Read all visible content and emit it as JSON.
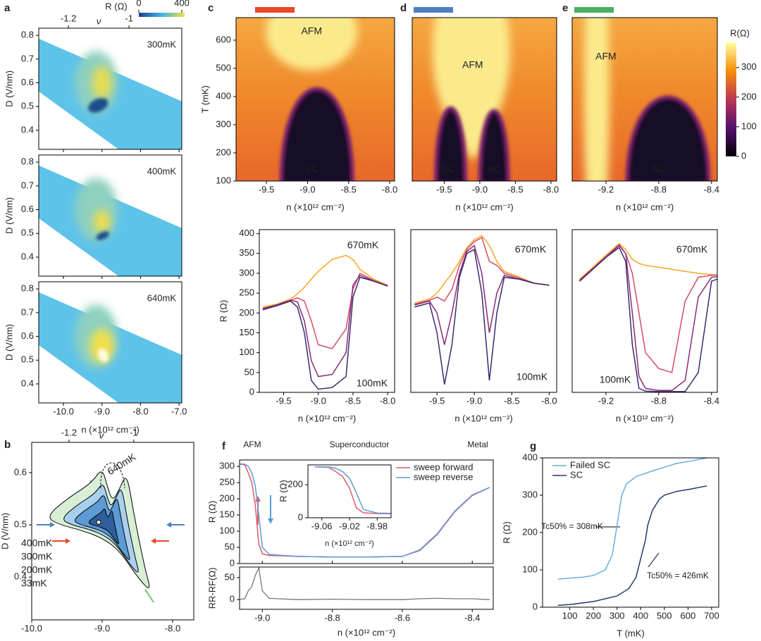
{
  "chart_data": [
    {
      "type": "heatmap",
      "label": "a",
      "x_label": "n (×10¹² cm⁻²)",
      "y_label": "D (V/nm)",
      "x2_label": "ν",
      "xlim": [
        -10.64,
        -6.93
      ],
      "xticks": [
        {
          "value": -10,
          "label": "-10.0"
        },
        {
          "value": -9,
          "label": "-9.0"
        },
        {
          "value": -8,
          "label": "-8.0"
        },
        {
          "value": -7,
          "label": "-7.0"
        }
      ],
      "x2lim": [
        -1.298,
        -0.826
      ],
      "x2ticks": [
        -1.2,
        -1
      ],
      "ylim": [
        0.32,
        0.83
      ],
      "yticks": [
        0.4,
        0.5,
        0.6,
        0.7,
        0.8
      ],
      "colorbar_label": "R (Ω)",
      "colorbar_lim": [
        0,
        400
      ],
      "colorbar_ticks": [
        0,
        400
      ],
      "panels": [
        {
          "annotation": "300mK"
        },
        {
          "annotation": "400mK"
        },
        {
          "annotation": "640mK"
        }
      ]
    },
    {
      "type": "contour",
      "label": "b",
      "x_label": "n (×10¹² cm⁻²)",
      "y_label": "D (V/nm)",
      "x2_label": "ν",
      "xlim": [
        -10,
        -7.7
      ],
      "xticks": [
        {
          "value": -10,
          "label": "-10.0"
        },
        {
          "value": -9,
          "label": "-9.0"
        },
        {
          "value": -8,
          "label": "-8.0"
        }
      ],
      "x2lim": [
        -1.315,
        -0.815
      ],
      "x2ticks": [
        -1.2,
        -1
      ],
      "ylim": [
        0.318,
        0.658
      ],
      "yticks": [
        0.4,
        0.5,
        0.6
      ],
      "annotation": "640mK",
      "series": [
        {
          "name": "400mK",
          "color": "#1e3a66",
          "fill": "#2e5f99"
        },
        {
          "name": "300mK",
          "color": "#2f6fb0",
          "fill": "#5c9bd4"
        },
        {
          "name": "200mK",
          "color": "#3f95d8",
          "fill": "#a9cfee"
        },
        {
          "name": "33mK",
          "color": "#6cc070",
          "fill": "#d8efd6"
        }
      ]
    },
    {
      "type": "heatmap",
      "label": "c",
      "bar_color": "#e8472b",
      "x_label": "n (×10¹² cm⁻²)",
      "y_label": "T (mK)",
      "xlim": [
        -9.87,
        -7.94
      ],
      "xticks": [
        -9.5,
        {
          "value": -9,
          "label": "-9.0"
        },
        -8.5,
        {
          "value": -8,
          "label": "-8.0"
        }
      ],
      "ylim": [
        100,
        680
      ],
      "yticks": [
        100,
        200,
        300,
        400,
        500,
        600
      ],
      "annotations": [
        "AFM",
        "SC"
      ]
    },
    {
      "type": "heatmap",
      "label": "d",
      "bar_color": "#4f7fc0",
      "x_label": "n (×10¹² cm⁻²)",
      "xlim": [
        -9.95,
        -7.92
      ],
      "xticks": [
        -9.5,
        {
          "value": -9,
          "label": "-9.0"
        },
        -8.5,
        {
          "value": -8,
          "label": "-8.0"
        }
      ],
      "ylim": [
        100,
        680
      ],
      "annotations": [
        "AFM",
        "SC",
        "SC"
      ]
    },
    {
      "type": "heatmap",
      "label": "e",
      "bar_color": "#4caf60",
      "x_label": "n (×10¹² cm⁻²)",
      "xlim": [
        -9.456,
        -8.356
      ],
      "xticks": [
        -9.2,
        -8.8,
        -8.4
      ],
      "ylim": [
        100,
        680
      ],
      "annotations": [
        "AFM",
        "SC"
      ],
      "colorbar_label": "R(Ω)",
      "colorbar_lim": [
        0,
        385
      ],
      "colorbar_ticks": [
        0,
        100,
        200,
        300
      ]
    },
    {
      "type": "line",
      "x_label": "n (×10¹² cm⁻²)",
      "y_label": "R (Ω)",
      "xlim": [
        -9.85,
        -7.9
      ],
      "xticks": [
        -9.5,
        {
          "value": -9,
          "label": "-9.0"
        },
        -8.5,
        {
          "value": -8,
          "label": "-8.0"
        }
      ],
      "ylim": [
        0,
        410
      ],
      "yticks": [
        0,
        50,
        100,
        150,
        200,
        250,
        300,
        350,
        400
      ],
      "annotations": [
        "670mK",
        "100mK"
      ],
      "x": [
        -9.8,
        -9.6,
        -9.4,
        -9.3,
        -9.2,
        -9.1,
        -9.0,
        -8.8,
        -8.6,
        -8.5,
        -8.4,
        -8.2,
        -8.0
      ],
      "series": [
        {
          "color": "#f5a623",
          "values": [
            215,
            222,
            235,
            248,
            265,
            285,
            305,
            335,
            345,
            335,
            310,
            285,
            270
          ]
        },
        {
          "color": "#d64a66",
          "values": [
            212,
            220,
            232,
            238,
            230,
            180,
            120,
            110,
            160,
            260,
            300,
            282,
            268
          ]
        },
        {
          "color": "#8a2a7a",
          "values": [
            210,
            220,
            232,
            228,
            180,
            80,
            40,
            45,
            100,
            270,
            295,
            280,
            268
          ]
        },
        {
          "color": "#3b2a6e",
          "values": [
            208,
            218,
            230,
            215,
            150,
            30,
            8,
            12,
            40,
            240,
            290,
            280,
            268
          ]
        }
      ]
    },
    {
      "type": "line",
      "x_label": "n (×10¹² cm⁻²)",
      "xlim": [
        -9.85,
        -7.9
      ],
      "xticks": [
        -9.5,
        {
          "value": -9,
          "label": "-9.0"
        },
        -8.5,
        {
          "value": -8,
          "label": "-8.0"
        }
      ],
      "ylim": [
        0,
        410
      ],
      "annotations": [
        "670mK",
        "100mK"
      ],
      "x": [
        -9.8,
        -9.6,
        -9.5,
        -9.4,
        -9.3,
        -9.2,
        -9.1,
        -9.0,
        -8.9,
        -8.8,
        -8.7,
        -8.6,
        -8.4,
        -8.2,
        -8.0
      ],
      "series": [
        {
          "color": "#f5a623",
          "values": [
            225,
            235,
            250,
            275,
            300,
            330,
            365,
            385,
            395,
            370,
            330,
            305,
            290,
            275,
            270
          ]
        },
        {
          "color": "#d64a66",
          "values": [
            222,
            232,
            240,
            230,
            260,
            320,
            360,
            380,
            390,
            330,
            320,
            300,
            288,
            275,
            270
          ]
        },
        {
          "color": "#8a2a7a",
          "values": [
            220,
            230,
            200,
            120,
            200,
            300,
            355,
            370,
            300,
            150,
            250,
            295,
            285,
            275,
            270
          ]
        },
        {
          "color": "#3b2a6e",
          "values": [
            215,
            225,
            150,
            20,
            120,
            290,
            350,
            360,
            250,
            30,
            200,
            290,
            285,
            275,
            270
          ]
        }
      ]
    },
    {
      "type": "line",
      "x_label": "n (×10¹² cm⁻²)",
      "xlim": [
        -9.456,
        -8.356
      ],
      "xticks": [
        -9.2,
        -8.8,
        -8.4
      ],
      "ylim": [
        0,
        410
      ],
      "annotations": [
        "670mK",
        "100mK"
      ],
      "x": [
        -9.4,
        -9.3,
        -9.2,
        -9.1,
        -9.05,
        -9.0,
        -8.95,
        -8.9,
        -8.8,
        -8.7,
        -8.6,
        -8.5,
        -8.4,
        -8.3
      ],
      "series": [
        {
          "color": "#f5a623",
          "values": [
            285,
            315,
            345,
            375,
            360,
            335,
            325,
            320,
            315,
            310,
            305,
            300,
            297,
            295
          ]
        },
        {
          "color": "#d64a66",
          "values": [
            283,
            312,
            342,
            372,
            350,
            300,
            200,
            100,
            60,
            50,
            230,
            290,
            295,
            295
          ]
        },
        {
          "color": "#8a2a7a",
          "values": [
            280,
            310,
            340,
            370,
            350,
            200,
            40,
            10,
            5,
            5,
            30,
            240,
            290,
            293
          ]
        },
        {
          "color": "#3b2a6e",
          "values": [
            280,
            310,
            340,
            365,
            330,
            120,
            10,
            3,
            2,
            2,
            2,
            50,
            280,
            292
          ]
        }
      ]
    },
    {
      "type": "line",
      "label": "f",
      "x_label": "n (×10¹² cm⁻²)",
      "y_label": "R (Ω)",
      "xlim": [
        -9.065,
        -8.34
      ],
      "xticks": [
        {
          "value": -9,
          "label": "-9.0"
        },
        -8.8,
        -8.6,
        -8.4
      ],
      "ylim": [
        0,
        320
      ],
      "yticks": [
        0,
        50,
        100,
        150,
        200,
        250,
        300
      ],
      "annotations": [
        "AFM",
        "Superconductor",
        "Metal"
      ],
      "legend": "upper right",
      "x": [
        -9.07,
        -9.05,
        -9.04,
        -9.03,
        -9.02,
        -9.01,
        -9.0,
        -8.98,
        -8.9,
        -8.8,
        -8.7,
        -8.6,
        -8.55,
        -8.5,
        -8.45,
        -8.4,
        -8.35
      ],
      "series": [
        {
          "name": "sweep forward",
          "color": "#e05a6a",
          "values": [
            308,
            305,
            280,
            250,
            180,
            60,
            30,
            25,
            22,
            20,
            20,
            22,
            40,
            90,
            160,
            210,
            235
          ]
        },
        {
          "name": "sweep reverse",
          "color": "#5b9bd5",
          "values": [
            308,
            307,
            300,
            280,
            240,
            150,
            50,
            28,
            22,
            20,
            20,
            22,
            42,
            92,
            162,
            212,
            235
          ]
        }
      ],
      "inset": {
        "x_label": "n (×10¹² cm⁻²)",
        "y_label": "R (Ω)",
        "xlim": [
          -9.08,
          -8.96
        ],
        "xticks": [
          -9.06,
          -9.02,
          -8.98
        ],
        "ylim": [
          0,
          320
        ],
        "yticks": [
          0,
          200
        ]
      },
      "difference": {
        "y_label": "RR-RF(Ω)",
        "ylim": [
          -22,
          74
        ],
        "yticks": [
          0,
          50
        ],
        "color": "#777777",
        "values": [
          0,
          2,
          20,
          30,
          55,
          72,
          20,
          3,
          0,
          1,
          0,
          0,
          2,
          3,
          2,
          2,
          0
        ]
      }
    },
    {
      "type": "line",
      "label": "g",
      "x_label": "T (mK)",
      "y_label": "R (Ω)",
      "xlim": [
        -15,
        730
      ],
      "xticks": [
        100,
        200,
        300,
        400,
        500,
        600,
        700
      ],
      "ylim": [
        0,
        400
      ],
      "yticks": [
        0,
        100,
        200,
        300,
        400
      ],
      "legend": "upper left",
      "annotations": [
        "Tc50% = 308mK",
        "Tc50% = 426mK"
      ],
      "series": [
        {
          "name": "Failed SC",
          "color": "#6aaee0",
          "x": [
            50,
            100,
            150,
            200,
            250,
            280,
            300,
            320,
            340,
            380,
            450,
            500,
            550,
            600,
            680
          ],
          "values": [
            75,
            78,
            80,
            85,
            100,
            140,
            220,
            300,
            330,
            350,
            365,
            375,
            385,
            390,
            400
          ]
        },
        {
          "name": "SC",
          "color": "#1f3b6e",
          "x": [
            50,
            100,
            200,
            300,
            350,
            380,
            400,
            420,
            430,
            450,
            480,
            500,
            550,
            600,
            680
          ],
          "values": [
            5,
            7,
            15,
            30,
            50,
            80,
            130,
            180,
            220,
            260,
            290,
            300,
            310,
            315,
            325
          ]
        }
      ]
    }
  ]
}
